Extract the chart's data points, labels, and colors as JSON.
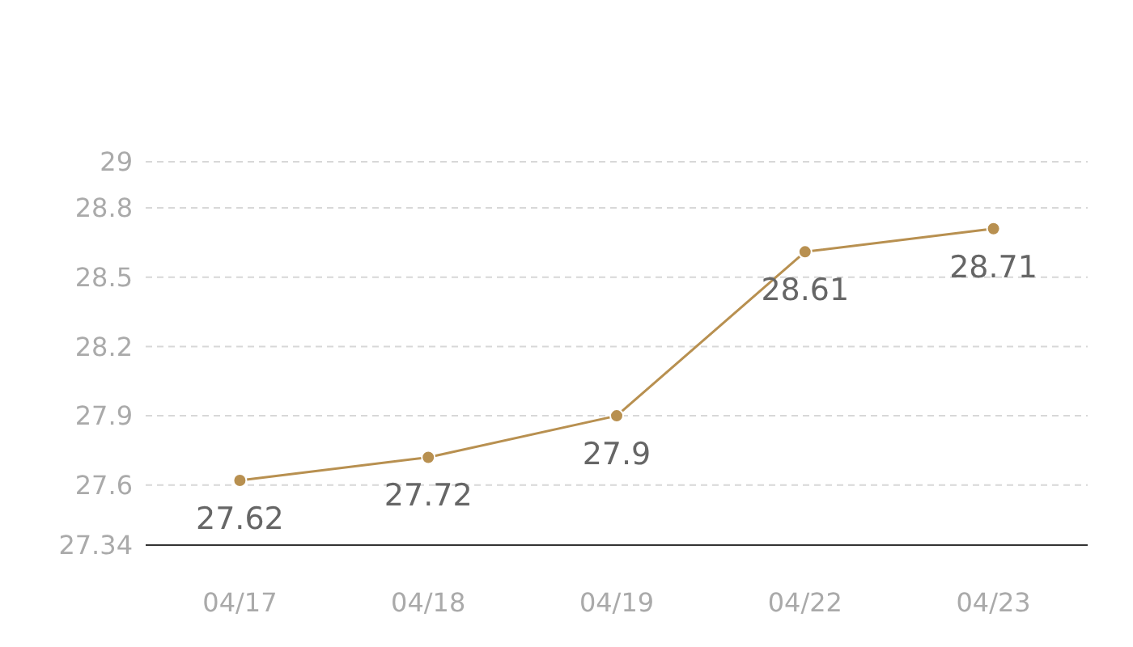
{
  "chart_data": {
    "type": "line",
    "categories": [
      "04/17",
      "04/18",
      "04/19",
      "04/22",
      "04/23"
    ],
    "series": [
      {
        "color": "#b89050",
        "values": [
          27.62,
          27.72,
          27.9,
          28.61,
          28.71
        ]
      }
    ],
    "ylim": [
      27.34,
      29
    ],
    "yticks": [
      27.34,
      27.6,
      27.9,
      28.2,
      28.5,
      28.8,
      29
    ],
    "grid": "y",
    "marker": "circle",
    "data_labels": true
  }
}
